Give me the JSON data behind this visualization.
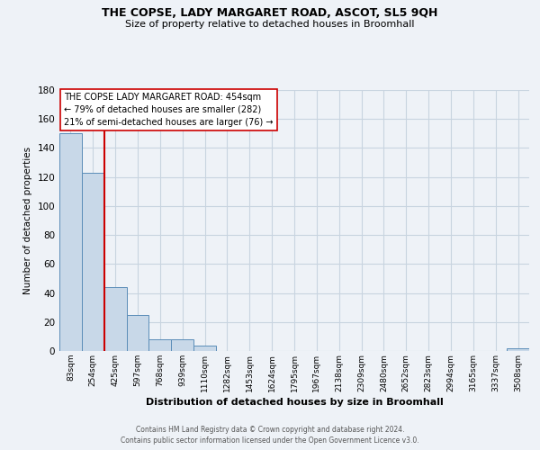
{
  "title": "THE COPSE, LADY MARGARET ROAD, ASCOT, SL5 9QH",
  "subtitle": "Size of property relative to detached houses in Broomhall",
  "xlabel": "Distribution of detached houses by size in Broomhall",
  "ylabel": "Number of detached properties",
  "bin_labels": [
    "83sqm",
    "254sqm",
    "425sqm",
    "597sqm",
    "768sqm",
    "939sqm",
    "1110sqm",
    "1282sqm",
    "1453sqm",
    "1624sqm",
    "1795sqm",
    "1967sqm",
    "2138sqm",
    "2309sqm",
    "2480sqm",
    "2652sqm",
    "2823sqm",
    "2994sqm",
    "3165sqm",
    "3337sqm",
    "3508sqm"
  ],
  "bar_heights": [
    150,
    123,
    44,
    25,
    8,
    8,
    4,
    0,
    0,
    0,
    0,
    0,
    0,
    0,
    0,
    0,
    0,
    0,
    0,
    0,
    2
  ],
  "bar_color": "#c8d8e8",
  "bar_edge_color": "#5b8db8",
  "property_line_color": "#cc0000",
  "annotation_title": "THE COPSE LADY MARGARET ROAD: 454sqm",
  "annotation_line1": "← 79% of detached houses are smaller (282)",
  "annotation_line2": "21% of semi-detached houses are larger (76) →",
  "annotation_box_color": "#ffffff",
  "annotation_box_edge": "#cc0000",
  "ylim": [
    0,
    180
  ],
  "yticks": [
    0,
    20,
    40,
    60,
    80,
    100,
    120,
    140,
    160,
    180
  ],
  "footer_line1": "Contains HM Land Registry data © Crown copyright and database right 2024.",
  "footer_line2": "Contains public sector information licensed under the Open Government Licence v3.0.",
  "background_color": "#eef2f7",
  "grid_color": "#c8d4e0"
}
